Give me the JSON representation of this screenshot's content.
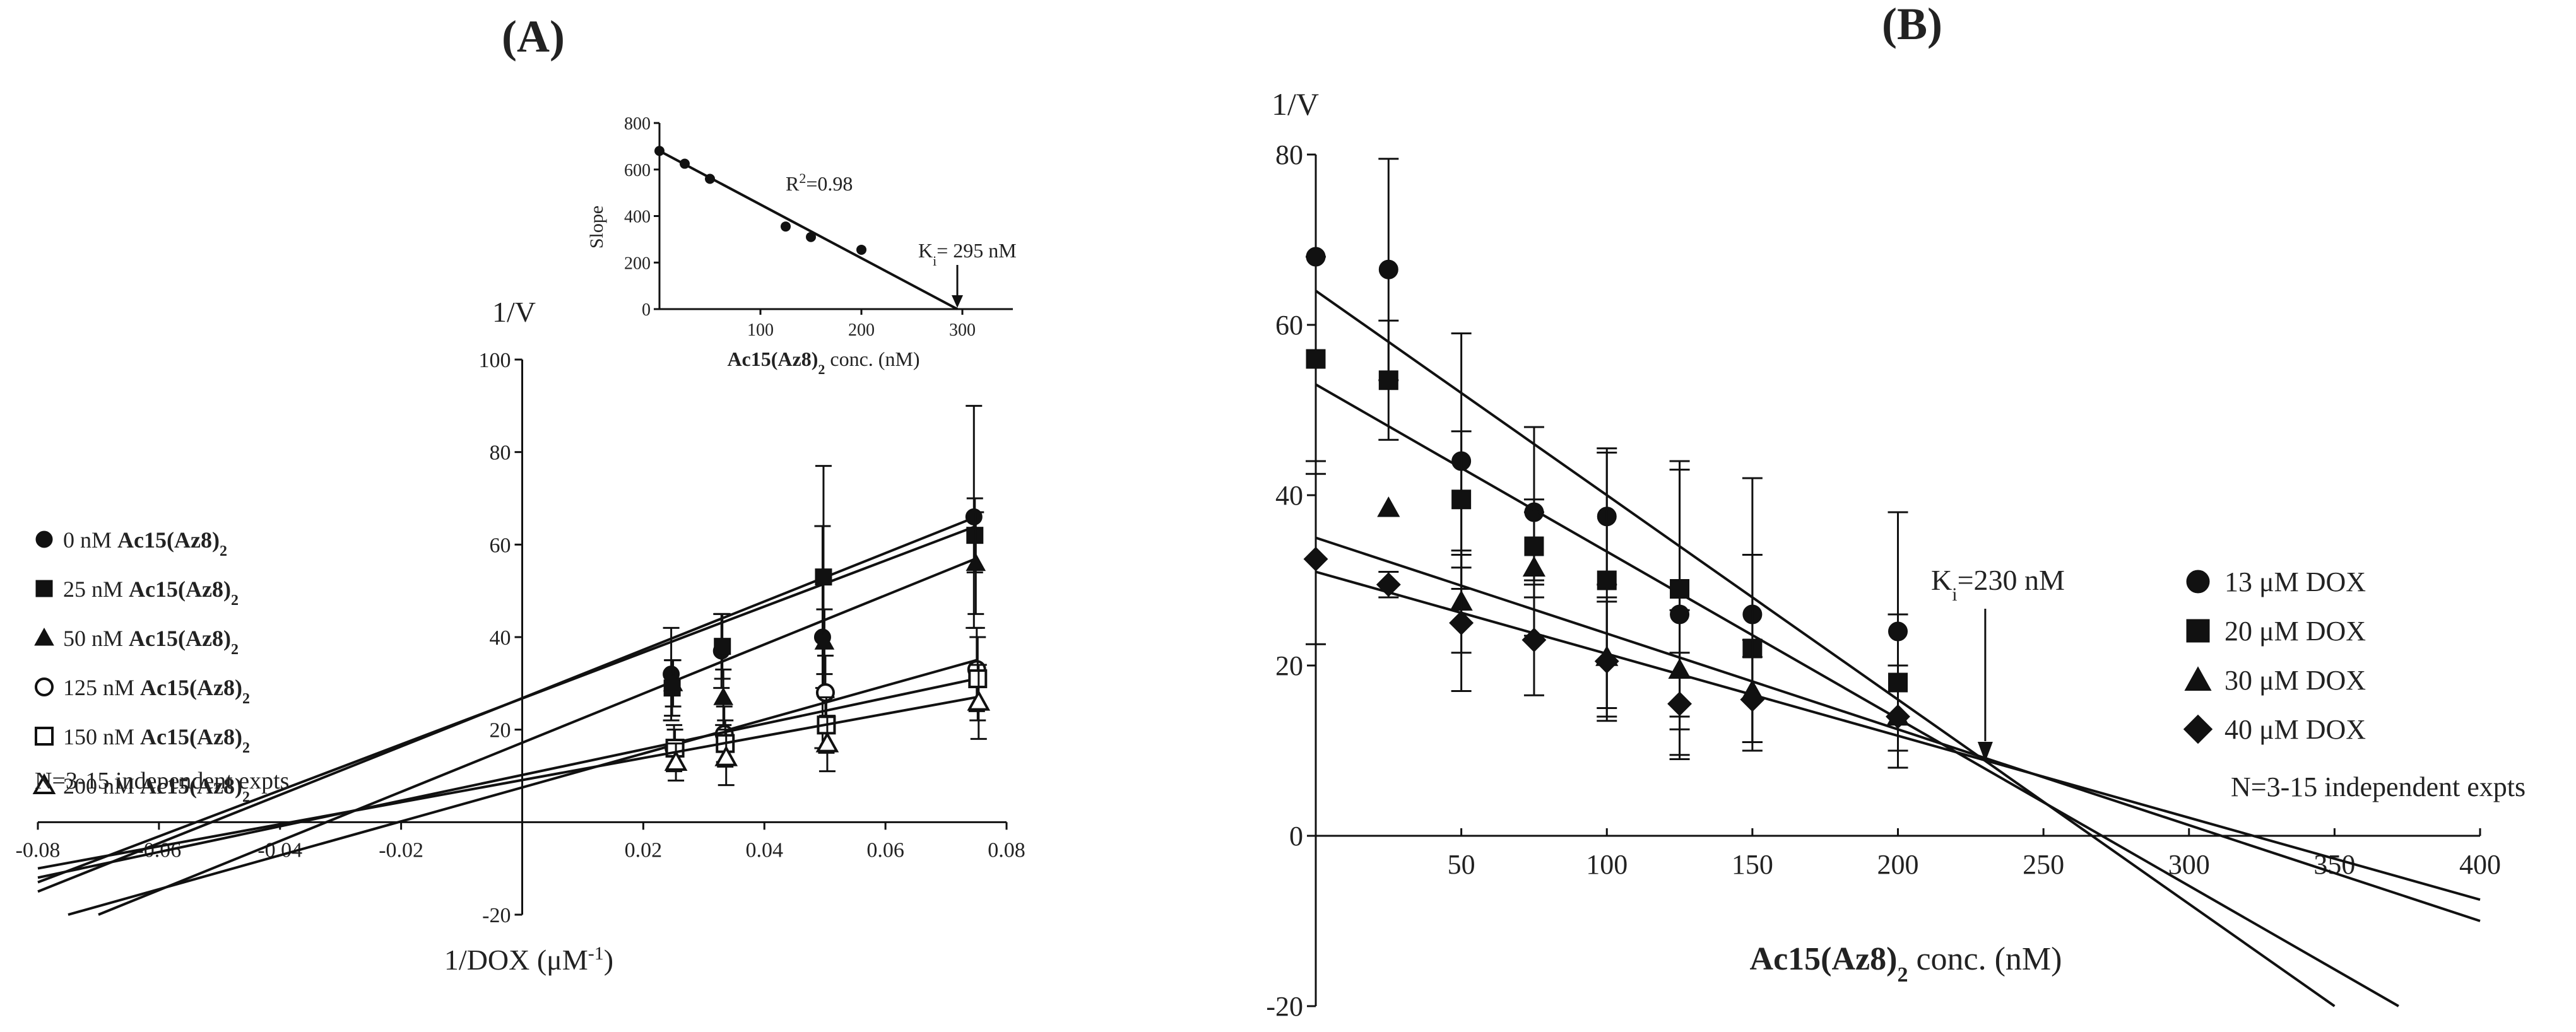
{
  "panel_a": {
    "label": "(A)",
    "note": "N=3-15 independent expts",
    "legend": [
      {
        "conc": "0 nM ",
        "compound": "Ac15(Az8)",
        "sub": "2",
        "marker": "circle-filled"
      },
      {
        "conc": "25 nM ",
        "compound": "Ac15(Az8)",
        "sub": "2",
        "marker": "square-filled"
      },
      {
        "conc": "50 nM ",
        "compound": "Ac15(Az8)",
        "sub": "2",
        "marker": "triangle-filled"
      },
      {
        "conc": "125 nM ",
        "compound": "Ac15(Az8)",
        "sub": "2",
        "marker": "circle-open"
      },
      {
        "conc": "150 nM ",
        "compound": "Ac15(Az8)",
        "sub": "2",
        "marker": "square-open"
      },
      {
        "conc": "200 nM ",
        "compound": "Ac15(Az8)",
        "sub": "2",
        "marker": "triangle-open"
      }
    ]
  },
  "panel_b": {
    "label": "(B)",
    "note": "N=3-15 independent expts",
    "ki_annotation": {
      "text_main": "K",
      "text_sub": "i",
      "text_rest": "=230 nM",
      "x_value": 230
    },
    "legend": [
      {
        "label": "13 μM DOX",
        "marker": "circle-filled"
      },
      {
        "label": "20 μM DOX",
        "marker": "square-filled"
      },
      {
        "label": "30 μM DOX",
        "marker": "triangle-filled"
      },
      {
        "label": "40 μM DOX",
        "marker": "diamond-filled"
      }
    ]
  },
  "chart_data": [
    {
      "id": "A",
      "type": "scatter",
      "title": "(A)",
      "ylabel": "1/V",
      "xlabel_main": "1/DOX (μM",
      "xlabel_sup": "-1",
      "xlabel_end": ")",
      "xlim": [
        -0.08,
        0.08
      ],
      "ylim": [
        -20,
        100
      ],
      "xticks": [
        -0.08,
        -0.06,
        -0.04,
        -0.02,
        0.02,
        0.04,
        0.06,
        0.08
      ],
      "xtick_labels": [
        "-0.08",
        "-0.06",
        "-0.04",
        "-0.02",
        "0.02",
        "0.04",
        "0.06",
        "0.08"
      ],
      "yticks": [
        -20,
        20,
        40,
        60,
        80,
        100
      ],
      "ytick_labels": [
        "-20",
        "20",
        "40",
        "60",
        "80",
        "100"
      ],
      "x": [
        0.025,
        0.0333,
        0.05,
        0.075
      ],
      "series": [
        {
          "name": "0 nM Ac15(Az8)2",
          "marker": "circle-filled",
          "values": [
            32,
            37,
            40,
            66
          ],
          "errors": [
            10,
            8,
            24,
            24
          ],
          "line_x": [
            -0.08,
            0.075
          ],
          "line_y": [
            -15,
            66
          ]
        },
        {
          "name": "25 nM Ac15(Az8)2",
          "marker": "square-filled",
          "values": [
            29,
            38,
            53,
            62
          ],
          "errors": [
            6,
            7,
            24,
            8
          ],
          "line_x": [
            -0.08,
            0.075
          ],
          "line_y": [
            -13,
            64
          ]
        },
        {
          "name": "50 nM Ac15(Az8)2",
          "marker": "triangle-filled",
          "values": [
            30,
            27,
            39,
            56
          ],
          "errors": [
            5,
            6,
            7,
            11
          ],
          "line_x": [
            -0.07,
            0.075
          ],
          "line_y": [
            -20,
            57
          ]
        },
        {
          "name": "125 nM Ac15(Az8)2",
          "marker": "circle-open",
          "values": [
            16,
            19,
            28,
            33
          ],
          "errors": [
            5,
            6,
            8,
            9
          ],
          "line_x": [
            -0.075,
            0.075
          ],
          "line_y": [
            -20,
            35
          ]
        },
        {
          "name": "150 nM Ac15(Az8)2",
          "marker": "square-open",
          "values": [
            16,
            17,
            21,
            31
          ],
          "errors": [
            4,
            5,
            6,
            9
          ],
          "line_x": [
            -0.08,
            0.075
          ],
          "line_y": [
            -12,
            31
          ]
        },
        {
          "name": "200 nM Ac15(Az8)2",
          "marker": "triangle-open",
          "values": [
            13,
            14,
            17,
            26
          ],
          "errors": [
            4,
            6,
            6,
            8
          ],
          "line_x": [
            -0.08,
            0.075
          ],
          "line_y": [
            -10,
            27
          ]
        }
      ]
    },
    {
      "id": "A-inset",
      "type": "scatter",
      "ylabel": "Slope",
      "xlabel_main": "Ac15(Az8)",
      "xlabel_sub": "2",
      "xlabel_end": " conc. (nM)",
      "xlim": [
        0,
        350
      ],
      "ylim": [
        0,
        800
      ],
      "xticks": [
        100,
        200,
        300
      ],
      "xtick_labels": [
        "100",
        "200",
        "300"
      ],
      "yticks": [
        0,
        200,
        400,
        600,
        800
      ],
      "ytick_labels": [
        "0",
        "200",
        "400",
        "600",
        "800"
      ],
      "points_x": [
        0,
        25,
        50,
        125,
        150,
        200
      ],
      "points_y": [
        680,
        625,
        560,
        355,
        310,
        255
      ],
      "fit_x": [
        0,
        295
      ],
      "fit_y": [
        680,
        0
      ],
      "r2_main": "R",
      "r2_sup": "2",
      "r2_rest": "=0.98",
      "ki_main": "K",
      "ki_sub": "i",
      "ki_rest": "= 295 nM",
      "ki_value": 295
    },
    {
      "id": "B",
      "type": "scatter",
      "title": "(B)",
      "ylabel": "1/V",
      "xlabel_main": "Ac15(Az8)",
      "xlabel_sub": "2",
      "xlabel_end": " conc. (nM)",
      "xlim": [
        0,
        400
      ],
      "ylim": [
        -20,
        80
      ],
      "xticks": [
        50,
        100,
        150,
        200,
        250,
        300,
        350,
        400
      ],
      "xtick_labels": [
        "50",
        "100",
        "150",
        "200",
        "250",
        "300",
        "350",
        "400"
      ],
      "yticks": [
        -20,
        0,
        20,
        40,
        60,
        80
      ],
      "ytick_labels": [
        "-20",
        "0",
        "20",
        "40",
        "60",
        "80"
      ],
      "x": [
        0,
        25,
        50,
        75,
        100,
        125,
        150,
        200
      ],
      "series": [
        {
          "name": "13 μM DOX",
          "marker": "circle-filled",
          "values": [
            68,
            66.5,
            44,
            38,
            37.5,
            26,
            26,
            24
          ],
          "errors": [
            0,
            13,
            15,
            10,
            8,
            17,
            16,
            14
          ],
          "line_x": [
            0,
            350
          ],
          "line_y": [
            64,
            -20
          ]
        },
        {
          "name": "20 μM DOX",
          "marker": "square-filled",
          "values": [
            56,
            53.5,
            39.5,
            34,
            30,
            29,
            22,
            18
          ],
          "errors": [
            12,
            7,
            8,
            4,
            15,
            15,
            11,
            8
          ],
          "line_x": [
            0,
            372
          ],
          "line_y": [
            53,
            -20
          ]
        },
        {
          "name": "30 μM DOX",
          "marker": "triangle-filled",
          "values": [
            null,
            38.5,
            27.5,
            31.5,
            21,
            19.5,
            17,
            14
          ],
          "errors": [
            0,
            0,
            6,
            8,
            7,
            7,
            6,
            6
          ],
          "line_x": [
            0,
            400
          ],
          "line_y": [
            35,
            -10
          ]
        },
        {
          "name": "40 μM DOX",
          "marker": "diamond-filled",
          "values": [
            32.5,
            29.5,
            25,
            23,
            20.5,
            15.5,
            16,
            14
          ],
          "errors": [
            10,
            1.5,
            8,
            6.5,
            7,
            6,
            5,
            6
          ],
          "line_x": [
            0,
            400
          ],
          "line_y": [
            31,
            -7.5
          ]
        }
      ]
    }
  ]
}
